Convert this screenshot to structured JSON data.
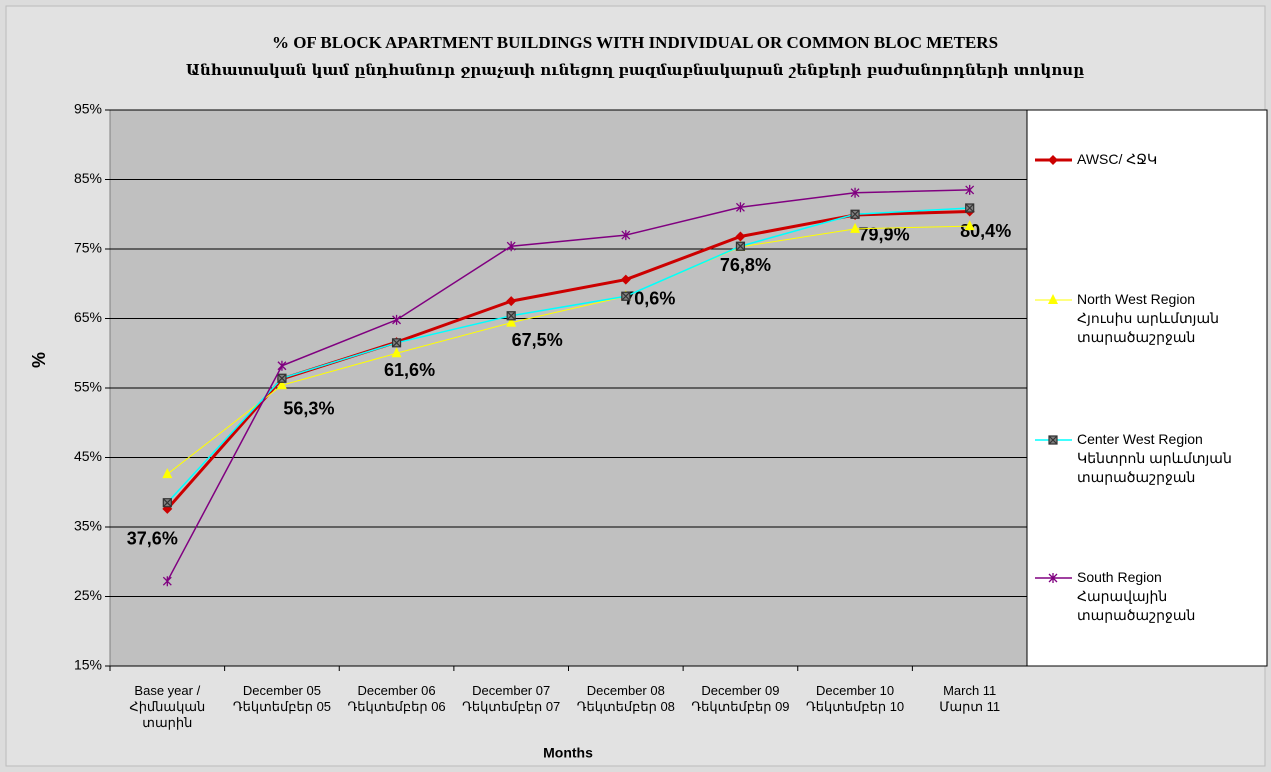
{
  "chart_data": {
    "type": "line",
    "title": "% OF BLOCK APARTMENT BUILDINGS WITH INDIVIDUAL OR COMMON BLOC METERS",
    "subtitle": "Անհատական կամ ընդհանուր ջրաչափ ունեցող բազմաբնակարան շենքերի բաժանորդների տոկոսը",
    "x_label": "Months",
    "y_label": "%",
    "categories": [
      "Base year /\nՀիմնական\nտարին",
      "December 05\nԴեկտեմբեր 05",
      "December 06\nԴեկտեմբեր 06",
      "December 07\nԴեկտեմբեր 07",
      "December 08\nԴեկտեմբեր 08",
      "December 09\nԴեկտեմբեր 09",
      "December 10\nԴեկտեմբեր 10",
      "March 11\nՄարտ 11"
    ],
    "series": [
      {
        "name": "AWSC/ ՀՋԿ",
        "color": "#cc0000",
        "values": [
          37.6,
          56.3,
          61.6,
          67.5,
          70.6,
          76.8,
          79.9,
          80.4
        ],
        "value_labels": [
          "37,6%",
          "56,3%",
          "61,6%",
          "67,5%",
          "70,6%",
          "76,8%",
          "79,9%",
          "80,4%"
        ]
      },
      {
        "name": "North West Region\nՀյուսիս արևմտյան\nտարածաշրջան",
        "color": "#ffff00",
        "values": [
          42.6,
          55.4,
          60.0,
          64.4,
          68.2,
          75.3,
          77.9,
          78.3
        ]
      },
      {
        "name": "Center West Region\nԿենտրոն արևմտյան\nտարածաշրջան",
        "color": "#00ffff",
        "values": [
          38.5,
          56.4,
          61.5,
          65.4,
          68.2,
          75.4,
          80.0,
          80.9
        ]
      },
      {
        "name": "South Region\nՀարավային\nտարածաշրջան",
        "color": "#800080",
        "values": [
          27.2,
          58.2,
          64.8,
          75.4,
          77.0,
          81.0,
          83.1,
          83.5
        ]
      }
    ],
    "ylim": [
      15,
      95
    ],
    "yticks": [
      {
        "value": 15,
        "label": "15%"
      },
      {
        "value": 25,
        "label": "25%"
      },
      {
        "value": 35,
        "label": "35%"
      },
      {
        "value": 45,
        "label": "45%"
      },
      {
        "value": 55,
        "label": "55%"
      },
      {
        "value": 65,
        "label": "65%"
      },
      {
        "value": 75,
        "label": "75%"
      },
      {
        "value": 85,
        "label": "85%"
      },
      {
        "value": 95,
        "label": "95%"
      }
    ],
    "grid": true,
    "legend": "right"
  }
}
